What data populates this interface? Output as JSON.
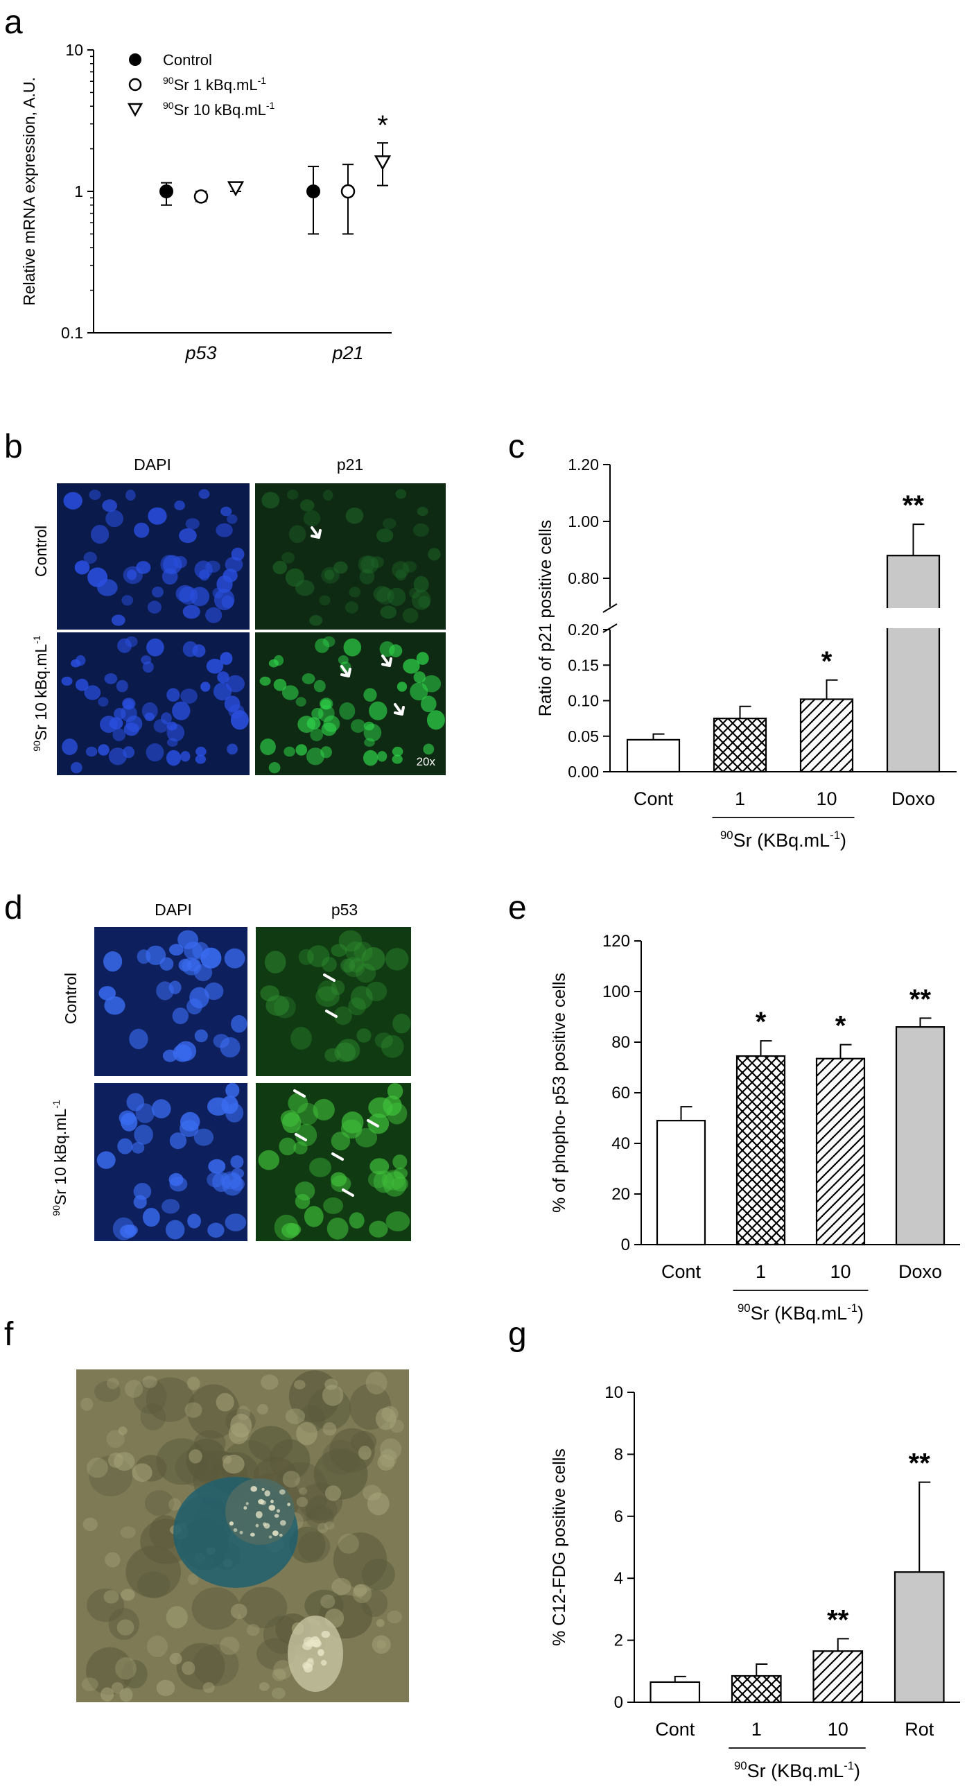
{
  "panels": {
    "a": "a",
    "b": "b",
    "c": "c",
    "d": "d",
    "e": "e",
    "f": "f",
    "g": "g"
  },
  "micrographs": {
    "b": {
      "col_dapi": "DAPI",
      "col_marker": "p21",
      "row_control": "Control",
      "row_treated_sup": "90",
      "row_treated": "Sr 10 kBq.mL",
      "row_treated_exp": "-1",
      "magnification": "20x",
      "colors": {
        "dapi_bg": "#0a1a4a",
        "dapi_nuclei": "#2a4fe0",
        "marker_bg": "#0e2a12",
        "marker_cells": "#2fd44a"
      }
    },
    "d": {
      "col_dapi": "DAPI",
      "col_marker": "p53",
      "row_control": "Control",
      "row_treated_sup": "90",
      "row_treated": "Sr 10 kBq.mL",
      "row_treated_exp": "-1",
      "colors": {
        "dapi_bg": "#0d1f5c",
        "dapi_nuclei": "#3a6cf2",
        "marker_bg": "#103a12",
        "marker_cells": "#3fbf3a"
      }
    },
    "f": {
      "colors": {
        "tissue": "#7d7a55",
        "stain": "#1f5f6e",
        "highlight": "#e8e6c8"
      }
    }
  },
  "chart_data": [
    {
      "id": "a",
      "type": "scatter",
      "ylabel": "Relative mRNA expression, A.U.",
      "yscale": "log",
      "ylim": [
        0.1,
        10
      ],
      "yticks": [
        "0.1",
        "1",
        "10"
      ],
      "categories": [
        "p53",
        "p21"
      ],
      "legend_placement": "top-left",
      "series": [
        {
          "name_sup": "",
          "name": "Control",
          "name_exp": "",
          "marker": "filled-circle",
          "values": [
            1.0,
            1.0
          ],
          "err_low": [
            0.8,
            0.5
          ],
          "err_high": [
            1.15,
            1.5
          ]
        },
        {
          "name_sup": "90",
          "name": "Sr 1 kBq.mL",
          "name_exp": "-1",
          "marker": "open-circle",
          "values": [
            0.92,
            1.0
          ],
          "err_low": [
            0.85,
            0.5
          ],
          "err_high": [
            1.0,
            1.55
          ]
        },
        {
          "name_sup": "90",
          "name": "Sr 10 kBq.mL",
          "name_exp": "-1",
          "marker": "open-triangle",
          "values": [
            1.05,
            1.6
          ],
          "err_low": [
            1.0,
            1.1
          ],
          "err_high": [
            1.1,
            2.2
          ]
        }
      ],
      "annotations": [
        {
          "text": "*",
          "category": "p21",
          "series": 2
        }
      ]
    },
    {
      "id": "c",
      "type": "bar",
      "ylabel": "Ratio of p21 positive cells",
      "broken_axis": true,
      "lower_ylim": [
        0,
        0.2
      ],
      "upper_ylim": [
        0.7,
        1.2
      ],
      "yticks_lower": [
        "0.00",
        "0.05",
        "0.10",
        "0.15",
        "0.20"
      ],
      "yticks_upper": [
        "0.80",
        "1.00",
        "1.20"
      ],
      "categories": [
        "Cont",
        "1",
        "10",
        "Doxo"
      ],
      "fills": [
        "white",
        "crosshatch",
        "diagonal",
        "gray"
      ],
      "values": [
        0.045,
        0.075,
        0.102,
        0.88
      ],
      "errors": [
        0.008,
        0.017,
        0.027,
        0.11
      ],
      "significance": [
        "",
        "",
        "*",
        "**"
      ],
      "group_label_sup": "90",
      "group_label": "Sr (KBq.mL",
      "group_label_exp": "-1",
      "group_label_close": ")"
    },
    {
      "id": "e",
      "type": "bar",
      "ylabel": "% of phopho- p53 positive cells",
      "ylim": [
        0,
        120
      ],
      "yticks": [
        "0",
        "20",
        "40",
        "60",
        "80",
        "100",
        "120"
      ],
      "categories": [
        "Cont",
        "1",
        "10",
        "Doxo"
      ],
      "fills": [
        "white",
        "crosshatch",
        "diagonal",
        "gray"
      ],
      "values": [
        49,
        74.5,
        73.5,
        86
      ],
      "errors": [
        5.5,
        6,
        5.5,
        3.5
      ],
      "significance": [
        "",
        "*",
        "*",
        "**"
      ],
      "group_label_sup": "90",
      "group_label": "Sr (KBq.mL",
      "group_label_exp": "-1",
      "group_label_close": ")"
    },
    {
      "id": "g",
      "type": "bar",
      "ylabel": "% C12-FDG positive cells",
      "ylim": [
        0,
        10
      ],
      "yticks": [
        "0",
        "2",
        "4",
        "6",
        "8",
        "10"
      ],
      "categories": [
        "Cont",
        "1",
        "10",
        "Rot"
      ],
      "fills": [
        "white",
        "crosshatch",
        "diagonal",
        "gray"
      ],
      "values": [
        0.65,
        0.85,
        1.65,
        4.2
      ],
      "errors": [
        0.18,
        0.38,
        0.4,
        2.9
      ],
      "significance": [
        "",
        "",
        "**",
        "**"
      ],
      "group_label_sup": "90",
      "group_label": "Sr (KBq.mL",
      "group_label_exp": "-1",
      "group_label_close": ")"
    }
  ]
}
